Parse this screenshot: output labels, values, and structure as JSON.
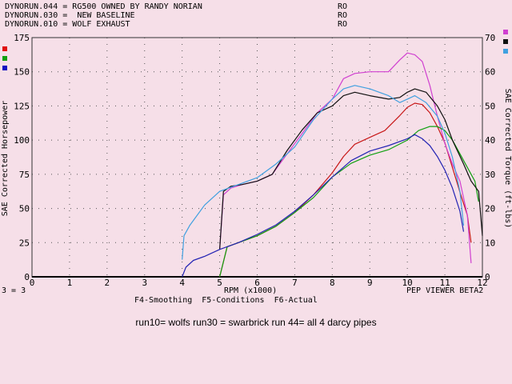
{
  "legend": [
    {
      "file": "DYNORUN.044",
      "desc": "RG500 OWNED BY RANDY NORIAN",
      "tag": "RO",
      "color": "#e01010"
    },
    {
      "file": "DYNORUN.030",
      "desc": " NEW BASELINE",
      "tag": "RO",
      "color": "#10a010"
    },
    {
      "file": "DYNORUN.010",
      "desc": "WOLF EXHAUST",
      "tag": "RO",
      "color": "#1010c0"
    }
  ],
  "footer": {
    "left": "3 = 3",
    "xlabel": "RPM (x1000)",
    "viewer": "PEP VIEWER BETA2",
    "fkeys": "F4-Smoothing  F5-Conditions  F6-Actual"
  },
  "note": "run10= wolfs     run30 = swarbrick     run 44= all 4 darcy pipes",
  "chart_data": {
    "type": "line",
    "xlabel": "RPM (x1000)",
    "ylabel": "SAE Corrected Horsepower",
    "y2label": "SAE Corrected Torque (ft-lbs)",
    "xlim": [
      0,
      12
    ],
    "ylim": [
      0,
      175
    ],
    "y2lim": [
      0,
      70
    ],
    "xticks": [
      0,
      1,
      2,
      3,
      4,
      5,
      6,
      7,
      8,
      9,
      10,
      11,
      12
    ],
    "yticks": [
      0,
      25,
      50,
      75,
      100,
      125,
      150,
      175
    ],
    "y2ticks": [
      0,
      10,
      20,
      30,
      40,
      50,
      60,
      70
    ],
    "grid": true,
    "series": [
      {
        "name": "DYNORUN.044 HP",
        "axis": "left",
        "color": "#c81818",
        "x": [
          5.0,
          5.2,
          5.5,
          6.0,
          6.5,
          7.0,
          7.5,
          8.0,
          8.3,
          8.6,
          9.0,
          9.4,
          9.8,
          10.0,
          10.2,
          10.4,
          10.6,
          10.8,
          11.0,
          11.2,
          11.4,
          11.6,
          11.7
        ],
        "y": [
          0,
          22,
          25,
          30,
          37,
          47,
          60,
          76,
          88,
          97,
          102,
          107,
          118,
          124,
          127,
          126,
          120,
          110,
          98,
          80,
          62,
          45,
          25
        ]
      },
      {
        "name": "DYNORUN.044 Torque",
        "axis": "right",
        "color": "#d040d0",
        "x": [
          5.0,
          5.1,
          5.3,
          5.6,
          6.0,
          6.4,
          6.8,
          7.2,
          7.6,
          8.0,
          8.3,
          8.6,
          9.0,
          9.5,
          9.8,
          10.0,
          10.2,
          10.4,
          10.6,
          10.8,
          11.0,
          11.2,
          11.4,
          11.6,
          11.7
        ],
        "y": [
          8,
          24,
          26,
          27,
          28,
          30,
          36,
          42,
          48,
          52,
          58,
          59.5,
          60,
          60,
          63.5,
          65.5,
          65,
          63,
          56,
          47,
          39,
          33,
          28,
          18,
          4
        ]
      },
      {
        "name": "DYNORUN.030 HP",
        "axis": "left",
        "color": "#10a010",
        "x": [
          5.0,
          5.2,
          5.5,
          6.0,
          6.5,
          7.0,
          7.5,
          8.0,
          8.5,
          9.0,
          9.5,
          10.0,
          10.3,
          10.6,
          10.8,
          11.0,
          11.2,
          11.4,
          11.6,
          11.8,
          11.9
        ],
        "y": [
          0,
          22,
          25,
          30,
          37,
          47,
          58,
          73,
          83,
          89,
          93,
          100,
          107,
          110,
          110,
          107,
          100,
          90,
          80,
          70,
          55
        ]
      },
      {
        "name": "DYNORUN.030 Torque",
        "axis": "right",
        "color": "#101010",
        "x": [
          5.0,
          5.1,
          5.3,
          5.6,
          6.0,
          6.4,
          6.8,
          7.2,
          7.6,
          8.0,
          8.3,
          8.6,
          9.0,
          9.5,
          9.8,
          10.0,
          10.2,
          10.5,
          10.8,
          11.0,
          11.2,
          11.5,
          11.7,
          11.9,
          12.0
        ],
        "y": [
          8,
          25,
          26.5,
          27,
          28,
          30,
          37,
          43,
          48,
          50,
          53,
          54,
          53,
          52,
          52.5,
          54,
          55,
          54,
          50,
          46,
          40,
          33,
          28,
          25,
          12
        ]
      },
      {
        "name": "DYNORUN.010 HP",
        "axis": "left",
        "color": "#2424b4",
        "x": [
          4.0,
          4.1,
          4.3,
          4.6,
          5.0,
          5.5,
          6.0,
          6.5,
          7.0,
          7.5,
          8.0,
          8.5,
          9.0,
          9.5,
          10.0,
          10.2,
          10.4,
          10.6,
          10.8,
          11.0,
          11.2,
          11.4,
          11.5
        ],
        "y": [
          0,
          7,
          12,
          15,
          20,
          25,
          31,
          38,
          48,
          60,
          73,
          85,
          92,
          96,
          101,
          104,
          101,
          96,
          88,
          78,
          65,
          48,
          33
        ]
      },
      {
        "name": "DYNORUN.010 Torque",
        "axis": "right",
        "color": "#40a0e0",
        "x": [
          4.0,
          4.05,
          4.2,
          4.6,
          5.0,
          5.5,
          6.0,
          6.5,
          7.0,
          7.5,
          8.0,
          8.3,
          8.6,
          9.0,
          9.5,
          9.8,
          10.0,
          10.2,
          10.5,
          10.8,
          11.0,
          11.2,
          11.4,
          11.5
        ],
        "y": [
          5,
          12,
          15,
          21,
          25,
          27,
          29,
          33,
          38,
          46,
          52,
          55,
          56,
          55,
          53,
          51,
          52,
          53,
          51,
          47,
          42,
          35,
          25,
          15
        ]
      }
    ]
  }
}
